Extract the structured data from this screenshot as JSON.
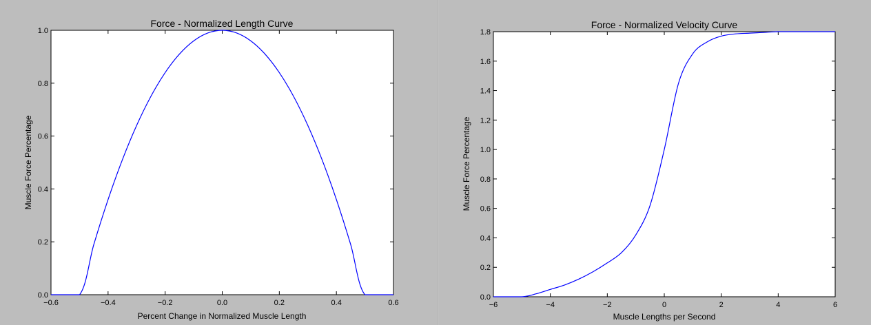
{
  "colors": {
    "line": "#0000ff",
    "plot_bg": "#ffffff",
    "window_bg": "#bdbdbd"
  },
  "chart_data": [
    {
      "type": "line",
      "title": "Force - Normalized Length Curve",
      "xlabel": "Percent Change in Normalized Muscle Length",
      "ylabel": "Muscle Force Percentage",
      "xlim": [
        -0.6,
        0.6
      ],
      "ylim": [
        0.0,
        1.0
      ],
      "xticks": [
        -0.6,
        -0.4,
        -0.2,
        0.0,
        0.2,
        0.4,
        0.6
      ],
      "xtick_labels": [
        "−0.6",
        "−0.4",
        "−0.2",
        "0.0",
        "0.2",
        "0.4",
        "0.6"
      ],
      "yticks": [
        0.0,
        0.2,
        0.4,
        0.6,
        0.8,
        1.0
      ],
      "ytick_labels": [
        "0.0",
        "0.2",
        "0.4",
        "0.6",
        "0.8",
        "1.0"
      ],
      "grid": false,
      "series": [
        {
          "x": [
            -0.6,
            -0.5,
            -0.45,
            -0.4,
            -0.35,
            -0.3,
            -0.25,
            -0.2,
            -0.15,
            -0.1,
            -0.05,
            0.0,
            0.05,
            0.1,
            0.15,
            0.2,
            0.25,
            0.3,
            0.35,
            0.4,
            0.45,
            0.5,
            0.6
          ],
          "y": [
            0.0,
            0.0,
            0.19,
            0.36,
            0.51,
            0.64,
            0.75,
            0.84,
            0.91,
            0.96,
            0.99,
            1.0,
            0.99,
            0.96,
            0.91,
            0.84,
            0.75,
            0.64,
            0.51,
            0.36,
            0.19,
            0.0,
            0.0
          ]
        }
      ]
    },
    {
      "type": "line",
      "title": "Force - Normalized Velocity Curve",
      "xlabel": "Muscle Lengths per Second",
      "ylabel": "Muscle Force Percentage",
      "xlim": [
        -6,
        6
      ],
      "ylim": [
        0.0,
        1.8
      ],
      "xticks": [
        -6,
        -4,
        -2,
        0,
        2,
        4,
        6
      ],
      "xtick_labels": [
        "−6",
        "−4",
        "−2",
        "0",
        "2",
        "4",
        "6"
      ],
      "yticks": [
        0.0,
        0.2,
        0.4,
        0.6,
        0.8,
        1.0,
        1.2,
        1.4,
        1.6,
        1.8
      ],
      "ytick_labels": [
        "0.0",
        "0.2",
        "0.4",
        "0.6",
        "0.8",
        "1.0",
        "1.2",
        "1.4",
        "1.6",
        "1.8"
      ],
      "grid": false,
      "series": [
        {
          "x": [
            -6,
            -5,
            -4.5,
            -4,
            -3.5,
            -3,
            -2.5,
            -2,
            -1.5,
            -1,
            -0.5,
            0,
            0.5,
            1,
            1.5,
            2,
            2.5,
            3,
            3.5,
            4,
            5,
            6
          ],
          "y": [
            0.0,
            0.0,
            0.02,
            0.05,
            0.08,
            0.12,
            0.17,
            0.23,
            0.3,
            0.42,
            0.62,
            1.0,
            1.45,
            1.65,
            1.73,
            1.77,
            1.785,
            1.79,
            1.795,
            1.8,
            1.8,
            1.8
          ]
        }
      ]
    }
  ]
}
